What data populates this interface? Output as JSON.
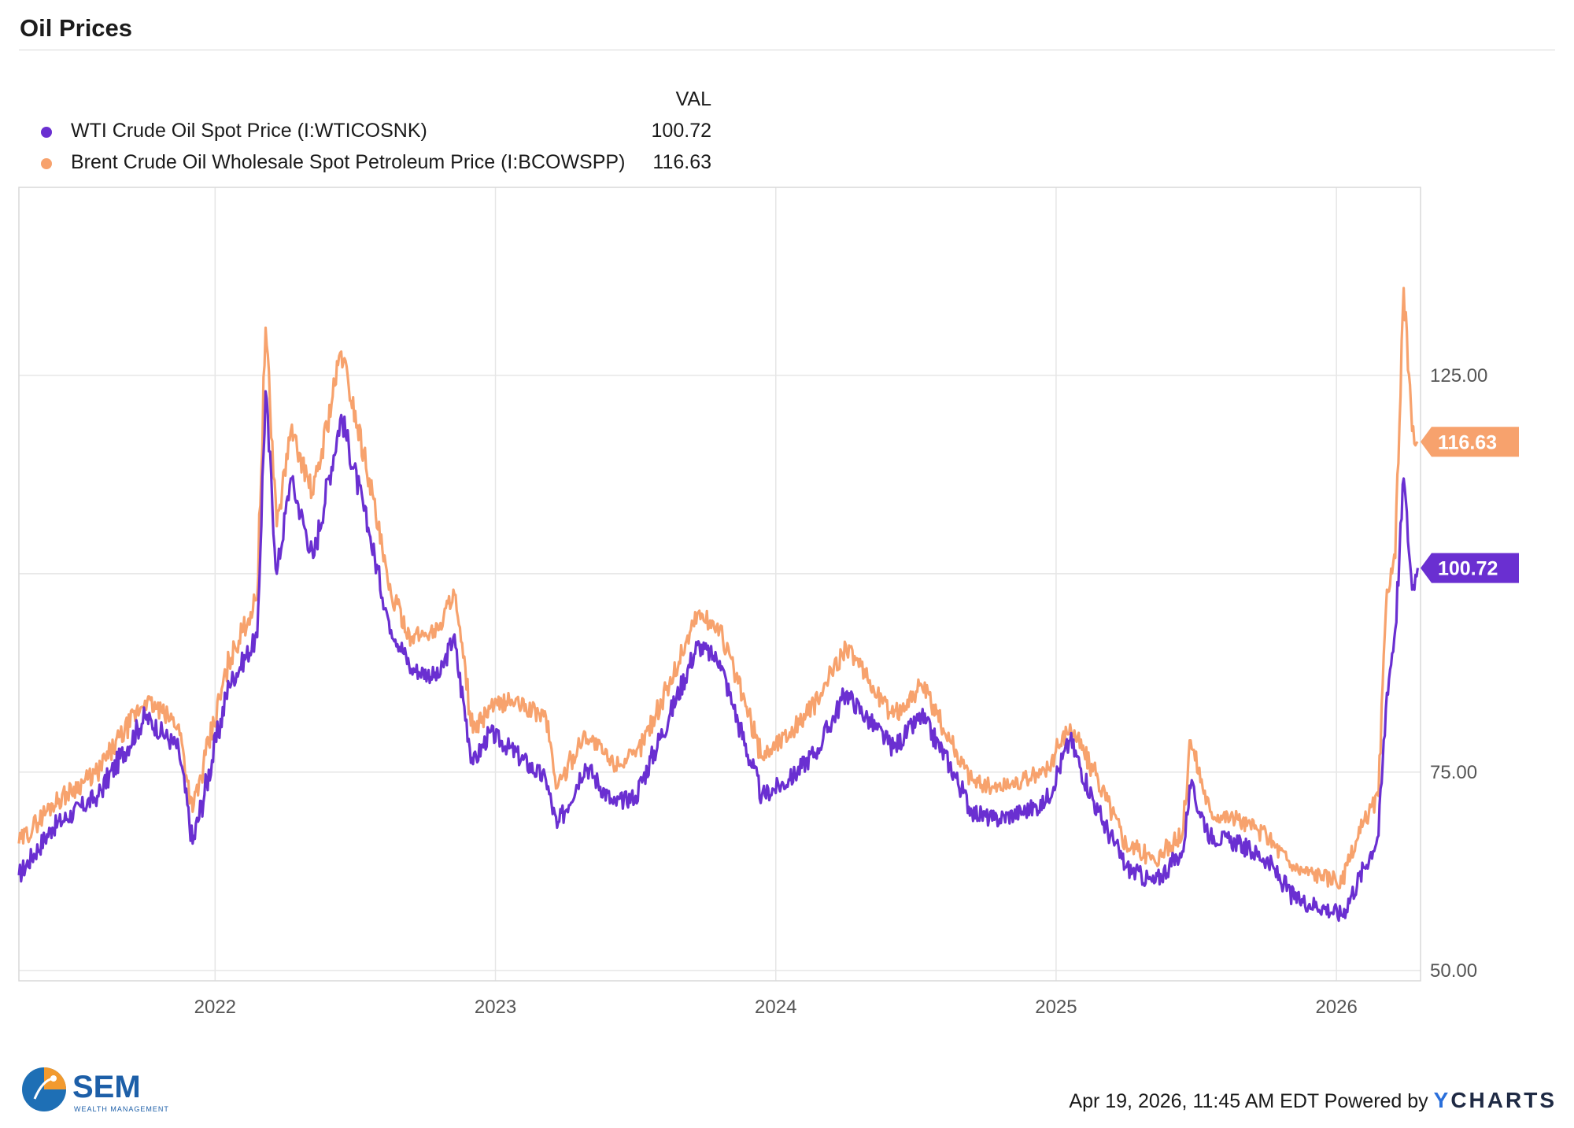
{
  "title": "Oil Prices",
  "legend": {
    "header": "VAL",
    "items": [
      {
        "label": "WTI Crude Oil Spot Price (I:WTICOSNK)",
        "value": "100.72",
        "color": "#6a2fd1"
      },
      {
        "label": "Brent Crude Oil Wholesale Spot Petroleum Price (I:BCOWSPP)",
        "value": "116.63",
        "color": "#f7a26d"
      }
    ]
  },
  "chart_data": {
    "type": "line",
    "title": "Oil Prices",
    "x_ticks": [
      "2022",
      "2023",
      "2024",
      "2025",
      "2026"
    ],
    "x_tick_positions": [
      2022.0,
      2023.0,
      2024.0,
      2025.0,
      2026.0
    ],
    "xlim": [
      2021.3,
      2026.3
    ],
    "y_ticks": [
      "50.00",
      "75.00",
      "125.00"
    ],
    "y_tick_values": [
      50,
      75,
      125
    ],
    "ylim": [
      48.7,
      148.7
    ],
    "series": [
      {
        "name": "WTI Crude Oil Spot Price (I:WTICOSNK)",
        "color": "#6a2fd1",
        "last_value": "100.72",
        "points": [
          [
            2021.3,
            62
          ],
          [
            2021.42,
            68
          ],
          [
            2021.58,
            72
          ],
          [
            2021.75,
            82
          ],
          [
            2021.87,
            78
          ],
          [
            2021.92,
            66
          ],
          [
            2022.05,
            86
          ],
          [
            2022.15,
            92
          ],
          [
            2022.18,
            123
          ],
          [
            2022.22,
            100
          ],
          [
            2022.27,
            112
          ],
          [
            2022.35,
            102
          ],
          [
            2022.45,
            120
          ],
          [
            2022.55,
            105
          ],
          [
            2022.62,
            94
          ],
          [
            2022.7,
            88
          ],
          [
            2022.8,
            87
          ],
          [
            2022.85,
            92
          ],
          [
            2022.92,
            76
          ],
          [
            2022.98,
            80
          ],
          [
            2023.05,
            78
          ],
          [
            2023.18,
            74
          ],
          [
            2023.22,
            68
          ],
          [
            2023.32,
            76
          ],
          [
            2023.42,
            71
          ],
          [
            2023.5,
            72
          ],
          [
            2023.62,
            82
          ],
          [
            2023.72,
            91
          ],
          [
            2023.8,
            89
          ],
          [
            2023.85,
            83
          ],
          [
            2023.95,
            72
          ],
          [
            2024.05,
            74
          ],
          [
            2024.15,
            78
          ],
          [
            2024.25,
            85
          ],
          [
            2024.32,
            82
          ],
          [
            2024.42,
            78
          ],
          [
            2024.52,
            82
          ],
          [
            2024.62,
            76
          ],
          [
            2024.7,
            70
          ],
          [
            2024.78,
            69
          ],
          [
            2024.88,
            70
          ],
          [
            2024.96,
            71
          ],
          [
            2025.05,
            79
          ],
          [
            2025.15,
            70
          ],
          [
            2025.25,
            63
          ],
          [
            2025.35,
            61
          ],
          [
            2025.45,
            65
          ],
          [
            2025.48,
            73
          ],
          [
            2025.55,
            67
          ],
          [
            2025.65,
            66
          ],
          [
            2025.75,
            64
          ],
          [
            2025.85,
            59
          ],
          [
            2025.95,
            58
          ],
          [
            2026.02,
            57
          ],
          [
            2026.1,
            63
          ],
          [
            2026.15,
            67
          ],
          [
            2026.18,
            85
          ],
          [
            2026.21,
            93
          ],
          [
            2026.24,
            112
          ],
          [
            2026.27,
            98
          ],
          [
            2026.29,
            100.72
          ]
        ]
      },
      {
        "name": "Brent Crude Oil Wholesale Spot Petroleum Price (I:BCOWSPP)",
        "color": "#f7a26d",
        "last_value": "116.63",
        "points": [
          [
            2021.3,
            66
          ],
          [
            2021.42,
            71
          ],
          [
            2021.58,
            75
          ],
          [
            2021.75,
            84
          ],
          [
            2021.87,
            81
          ],
          [
            2021.92,
            70
          ],
          [
            2022.05,
            89
          ],
          [
            2022.15,
            97
          ],
          [
            2022.18,
            131
          ],
          [
            2022.22,
            106
          ],
          [
            2022.27,
            118
          ],
          [
            2022.35,
            110
          ],
          [
            2022.45,
            128
          ],
          [
            2022.55,
            112
          ],
          [
            2022.62,
            98
          ],
          [
            2022.7,
            92
          ],
          [
            2022.8,
            93
          ],
          [
            2022.85,
            98
          ],
          [
            2022.92,
            80
          ],
          [
            2022.98,
            83
          ],
          [
            2023.05,
            84
          ],
          [
            2023.18,
            82
          ],
          [
            2023.22,
            73
          ],
          [
            2023.32,
            80
          ],
          [
            2023.42,
            76
          ],
          [
            2023.5,
            77
          ],
          [
            2023.62,
            86
          ],
          [
            2023.72,
            95
          ],
          [
            2023.8,
            93
          ],
          [
            2023.85,
            88
          ],
          [
            2023.95,
            77
          ],
          [
            2024.05,
            80
          ],
          [
            2024.15,
            84
          ],
          [
            2024.25,
            91
          ],
          [
            2024.32,
            87
          ],
          [
            2024.42,
            82
          ],
          [
            2024.52,
            86
          ],
          [
            2024.62,
            79
          ],
          [
            2024.7,
            74
          ],
          [
            2024.78,
            73
          ],
          [
            2024.88,
            74
          ],
          [
            2024.96,
            75
          ],
          [
            2025.05,
            81
          ],
          [
            2025.15,
            74
          ],
          [
            2025.25,
            66
          ],
          [
            2025.35,
            64
          ],
          [
            2025.45,
            67
          ],
          [
            2025.48,
            79
          ],
          [
            2025.55,
            70
          ],
          [
            2025.65,
            69
          ],
          [
            2025.75,
            67
          ],
          [
            2025.85,
            63
          ],
          [
            2025.95,
            62
          ],
          [
            2026.02,
            61
          ],
          [
            2026.1,
            69
          ],
          [
            2026.15,
            72
          ],
          [
            2026.18,
            98
          ],
          [
            2026.21,
            102
          ],
          [
            2026.24,
            136
          ],
          [
            2026.27,
            118
          ],
          [
            2026.29,
            116.63
          ]
        ]
      }
    ]
  },
  "footer": {
    "timestamp": "Apr 19, 2026, 11:45 AM EDT Powered by",
    "brand_y": "Y",
    "brand_rest": "CHARTS"
  },
  "logo": {
    "name": "SEM",
    "subtitle": "WEALTH MANAGEMENT",
    "colors": {
      "blue": "#1e6fb5",
      "orange": "#f29a2e",
      "text": "#1d5fa8"
    }
  }
}
